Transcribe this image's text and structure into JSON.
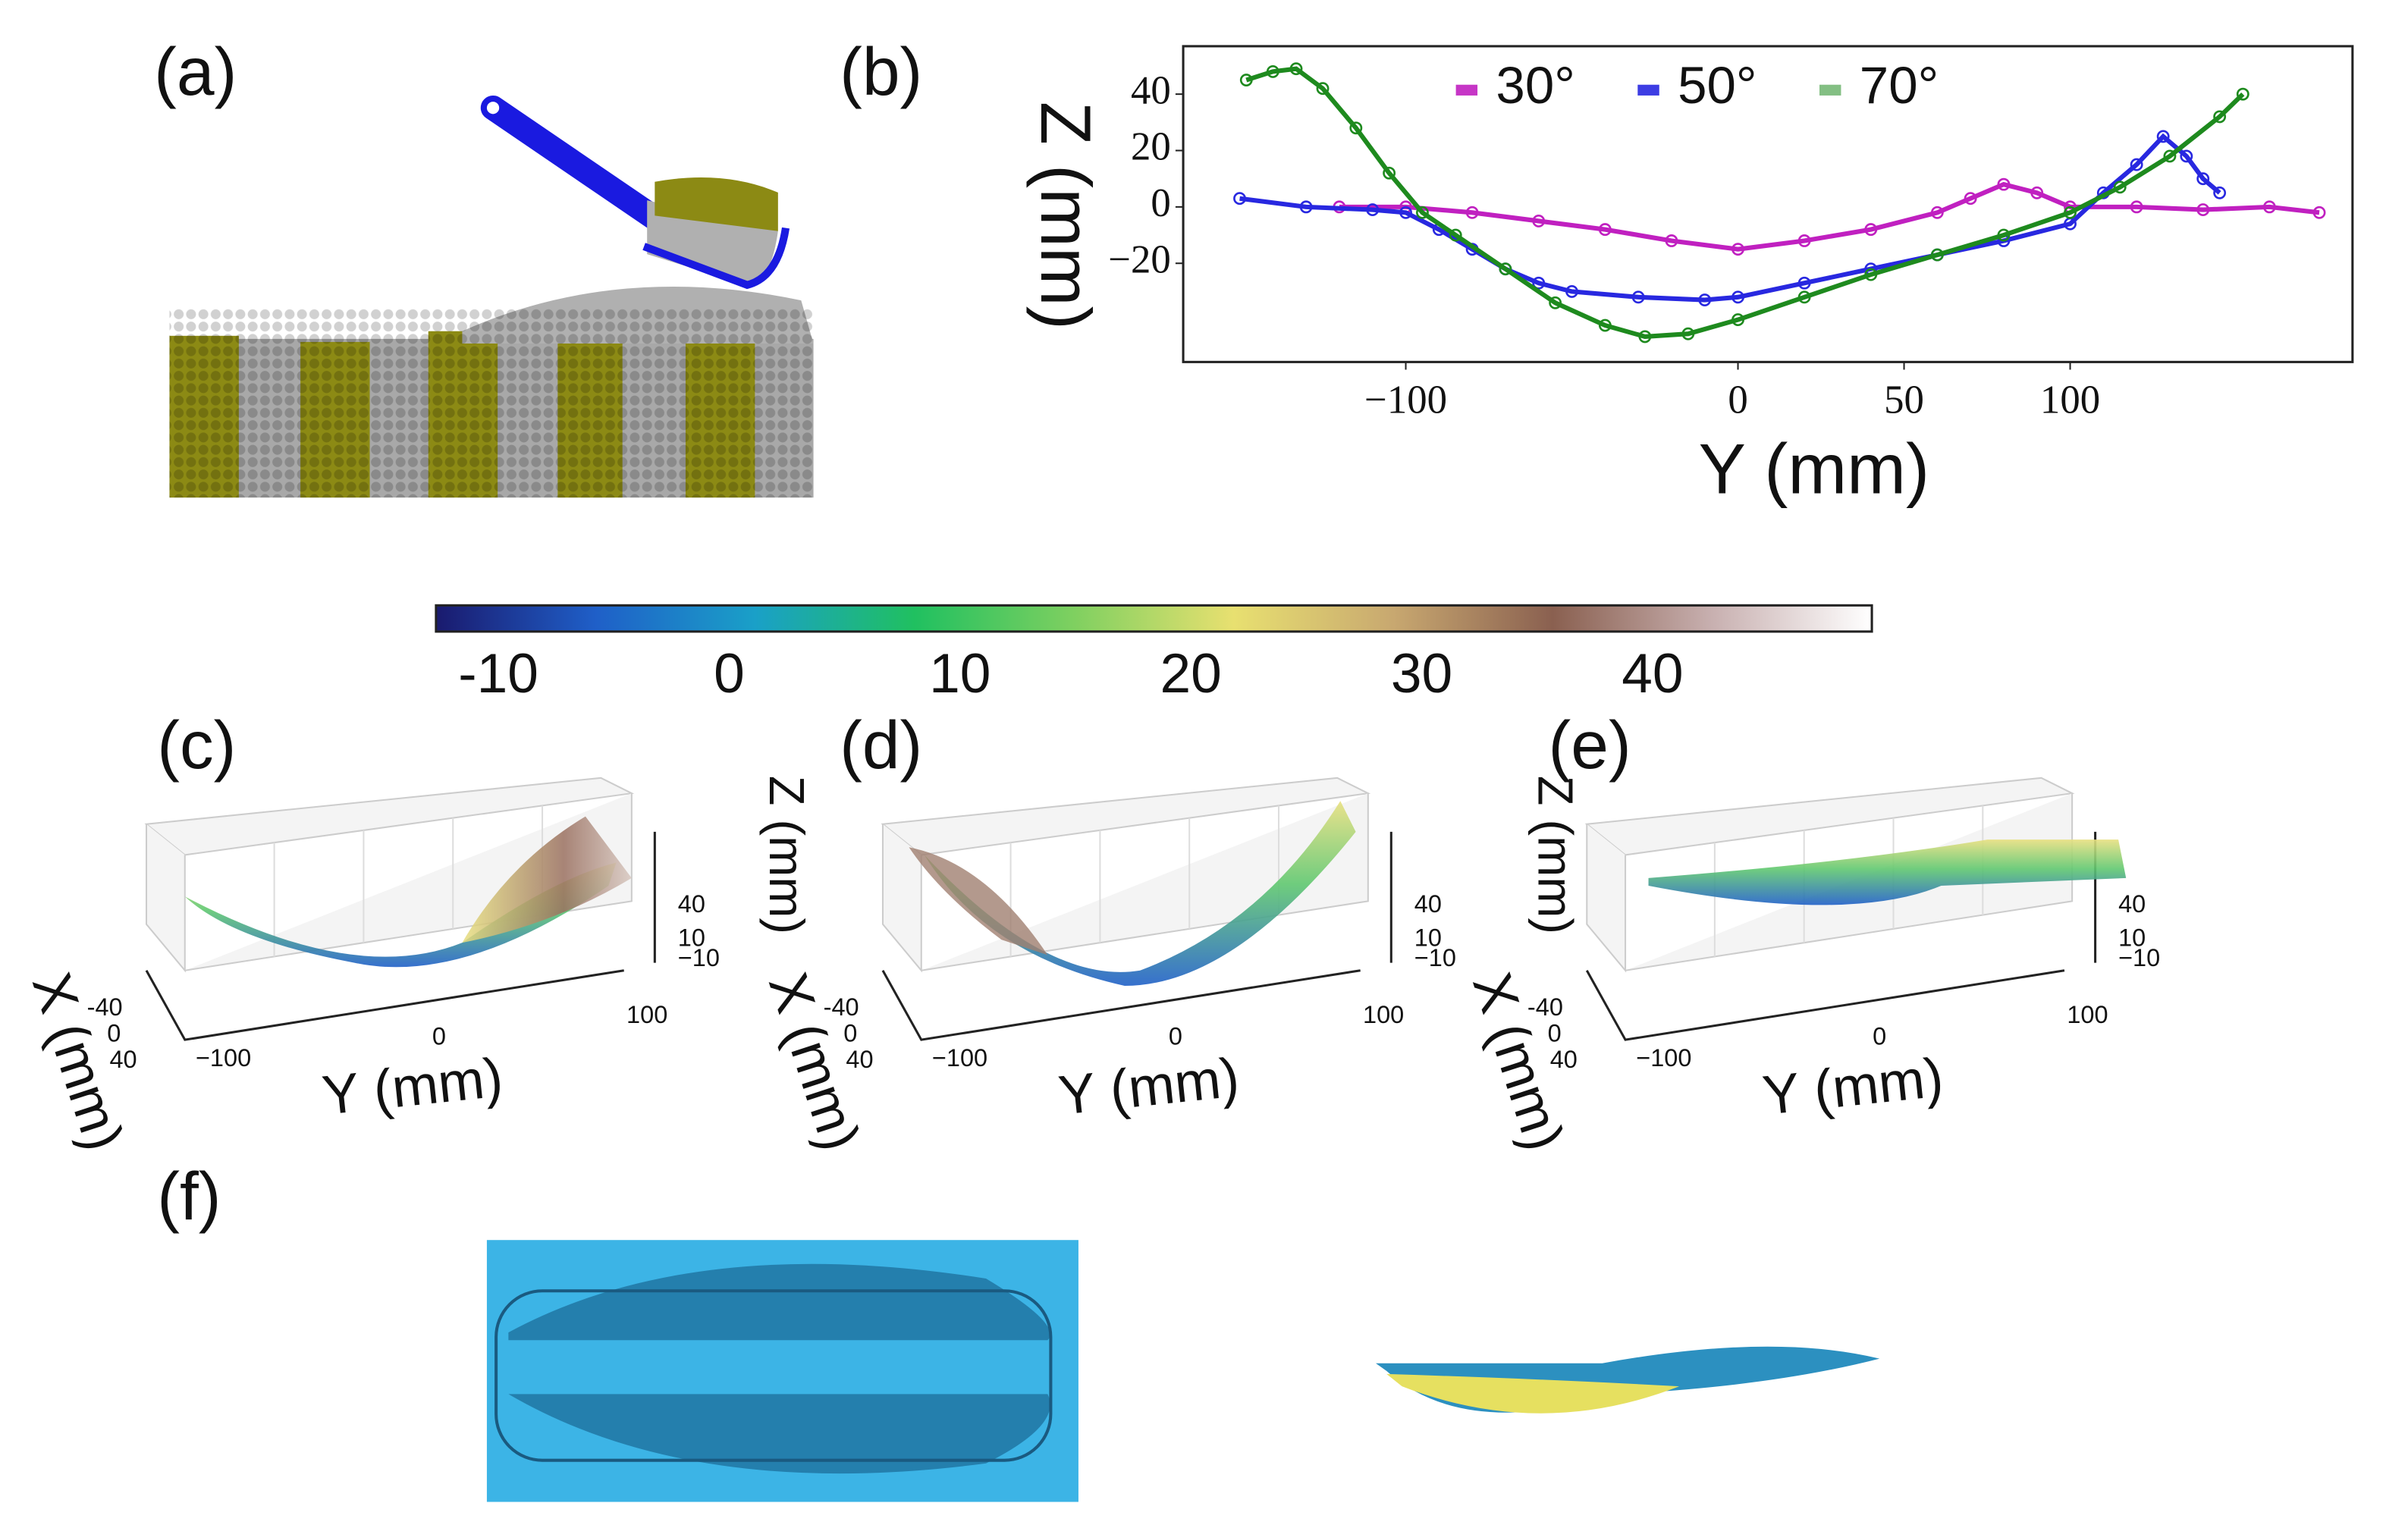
{
  "panel_labels": [
    "(a)",
    "(b)",
    "(c)",
    "(d)",
    "(e)",
    "(f)"
  ],
  "chart_data": [
    {
      "type": "scatter",
      "xlabel": "Y (mm)",
      "ylabel": "Z (mm)",
      "xlim": [
        -167,
        185
      ],
      "ylim": [
        -55,
        57
      ],
      "xticks": [
        {
          "value": -100,
          "label": "−100"
        },
        0,
        50,
        100
      ],
      "yticks": [
        {
          "value": -20,
          "label": "−20"
        },
        0,
        20,
        40
      ],
      "legend": "top",
      "series": [
        {
          "name": "30°",
          "color": "#c020c0",
          "x": [
            -120,
            -100,
            -80,
            -60,
            -40,
            -20,
            0,
            20,
            40,
            60,
            70,
            80,
            90,
            100,
            120,
            140,
            160,
            175
          ],
          "values": [
            0,
            0,
            -2,
            -5,
            -8,
            -12,
            -15,
            -12,
            -8,
            -2,
            3,
            8,
            5,
            0,
            0,
            -1,
            0,
            -2
          ]
        },
        {
          "name": "50°",
          "color": "#2828e0",
          "x": [
            -150,
            -130,
            -110,
            -100,
            -90,
            -80,
            -70,
            -60,
            -50,
            -30,
            -10,
            0,
            20,
            40,
            60,
            80,
            100,
            110,
            120,
            128,
            135,
            140,
            145
          ],
          "values": [
            3,
            0,
            -1,
            -2,
            -8,
            -15,
            -22,
            -27,
            -30,
            -32,
            -33,
            -32,
            -27,
            -22,
            -17,
            -12,
            -6,
            5,
            15,
            25,
            18,
            10,
            5
          ]
        },
        {
          "name": "70°",
          "color": "#1e8a1e",
          "x": [
            -148,
            -140,
            -133,
            -125,
            -115,
            -105,
            -95,
            -85,
            -70,
            -55,
            -40,
            -28,
            -15,
            0,
            20,
            40,
            60,
            80,
            100,
            115,
            130,
            145,
            152
          ],
          "values": [
            45,
            48,
            49,
            42,
            28,
            12,
            -2,
            -10,
            -22,
            -34,
            -42,
            -46,
            -45,
            -40,
            -32,
            -24,
            -17,
            -10,
            -2,
            7,
            18,
            32,
            40
          ]
        }
      ]
    },
    {
      "type": "colorbar",
      "clim": [
        -12.7,
        49.5
      ],
      "ticks": [
        -10,
        0,
        10,
        20,
        30,
        40
      ],
      "colors": [
        "#1a1a6e",
        "#1f5fc8",
        "#1aa0c8",
        "#20c060",
        "#7fd060",
        "#e8e070",
        "#c8a870",
        "#8a6050",
        "#c8b0b0",
        "#ffffff"
      ]
    }
  ],
  "panels_3d": [
    {
      "x_label": "X (mm)",
      "y_label": "Y (mm)",
      "x_ticks": [
        "-40",
        "0",
        "40"
      ],
      "y_ticks": [
        "−100",
        "0",
        "100"
      ],
      "z_ticks": [
        "40",
        "10",
        "−10"
      ]
    },
    {
      "x_label": "X (mm)",
      "y_label": "Y (mm)",
      "z_label": "Z (mm)",
      "x_ticks": [
        "-40",
        "0",
        "40"
      ],
      "y_ticks": [
        "−100",
        "0",
        "100"
      ],
      "z_ticks": [
        "40",
        "10",
        "−10"
      ]
    },
    {
      "x_label": "X (mm)",
      "y_label": "Y (mm)",
      "z_label": "Z (mm)",
      "x_ticks": [
        "-40",
        "0",
        "40"
      ],
      "y_ticks": [
        "−100",
        "0",
        "100"
      ],
      "z_ticks": [
        "40",
        "10",
        "−10"
      ]
    }
  ]
}
